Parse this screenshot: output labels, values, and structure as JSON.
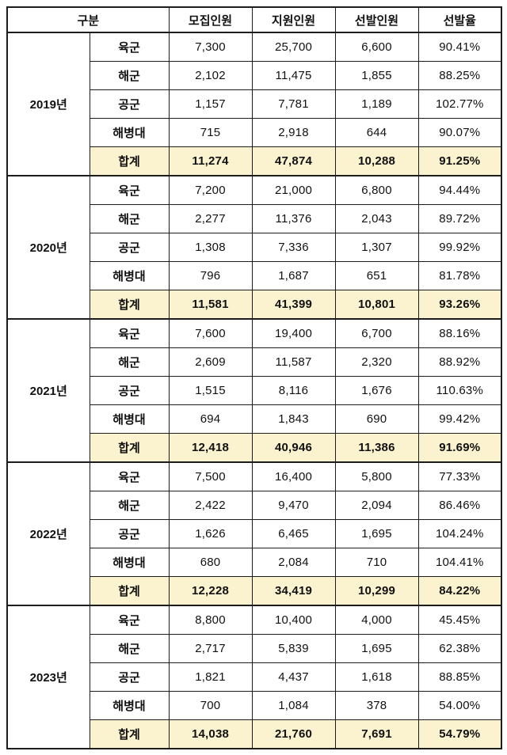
{
  "table": {
    "columns": [
      "구분",
      "모집인원",
      "지원인원",
      "선발인원",
      "선발율"
    ],
    "total_label": "합계",
    "groups": [
      {
        "year": "2019년",
        "rows": [
          {
            "label": "육군",
            "values": [
              "7,300",
              "25,700",
              "6,600",
              "90.41%"
            ]
          },
          {
            "label": "해군",
            "values": [
              "2,102",
              "11,475",
              "1,855",
              "88.25%"
            ]
          },
          {
            "label": "공군",
            "values": [
              "1,157",
              "7,781",
              "1,189",
              "102.77%"
            ]
          },
          {
            "label": "해병대",
            "values": [
              "715",
              "2,918",
              "644",
              "90.07%"
            ]
          },
          {
            "label": "합계",
            "values": [
              "11,274",
              "47,874",
              "10,288",
              "91.25%"
            ],
            "total": true
          }
        ]
      },
      {
        "year": "2020년",
        "rows": [
          {
            "label": "육군",
            "values": [
              "7,200",
              "21,000",
              "6,800",
              "94.44%"
            ]
          },
          {
            "label": "해군",
            "values": [
              "2,277",
              "11,376",
              "2,043",
              "89.72%"
            ]
          },
          {
            "label": "공군",
            "values": [
              "1,308",
              "7,336",
              "1,307",
              "99.92%"
            ]
          },
          {
            "label": "해병대",
            "values": [
              "796",
              "1,687",
              "651",
              "81.78%"
            ]
          },
          {
            "label": "합계",
            "values": [
              "11,581",
              "41,399",
              "10,801",
              "93.26%"
            ],
            "total": true
          }
        ]
      },
      {
        "year": "2021년",
        "rows": [
          {
            "label": "육군",
            "values": [
              "7,600",
              "19,400",
              "6,700",
              "88.16%"
            ]
          },
          {
            "label": "해군",
            "values": [
              "2,609",
              "11,587",
              "2,320",
              "88.92%"
            ]
          },
          {
            "label": "공군",
            "values": [
              "1,515",
              "8,116",
              "1,676",
              "110.63%"
            ]
          },
          {
            "label": "해병대",
            "values": [
              "694",
              "1,843",
              "690",
              "99.42%"
            ]
          },
          {
            "label": "합계",
            "values": [
              "12,418",
              "40,946",
              "11,386",
              "91.69%"
            ],
            "total": true
          }
        ]
      },
      {
        "year": "2022년",
        "rows": [
          {
            "label": "육군",
            "values": [
              "7,500",
              "16,400",
              "5,800",
              "77.33%"
            ]
          },
          {
            "label": "해군",
            "values": [
              "2,422",
              "9,470",
              "2,094",
              "86.46%"
            ]
          },
          {
            "label": "공군",
            "values": [
              "1,626",
              "6,465",
              "1,695",
              "104.24%"
            ]
          },
          {
            "label": "해병대",
            "values": [
              "680",
              "2,084",
              "710",
              "104.41%"
            ]
          },
          {
            "label": "합계",
            "values": [
              "12,228",
              "34,419",
              "10,299",
              "84.22%"
            ],
            "total": true
          }
        ]
      },
      {
        "year": "2023년",
        "rows": [
          {
            "label": "육군",
            "values": [
              "8,800",
              "10,400",
              "4,000",
              "45.45%"
            ]
          },
          {
            "label": "해군",
            "values": [
              "2,717",
              "5,839",
              "1,695",
              "62.38%"
            ]
          },
          {
            "label": "공군",
            "values": [
              "1,821",
              "4,437",
              "1,618",
              "88.85%"
            ]
          },
          {
            "label": "해병대",
            "values": [
              "700",
              "1,084",
              "378",
              "54.00%"
            ]
          },
          {
            "label": "합계",
            "values": [
              "14,038",
              "21,760",
              "7,691",
              "54.79%"
            ],
            "total": true
          }
        ]
      }
    ]
  },
  "colors": {
    "total_row_bg": "#fbf3cf",
    "border": "#1c1c1c"
  }
}
